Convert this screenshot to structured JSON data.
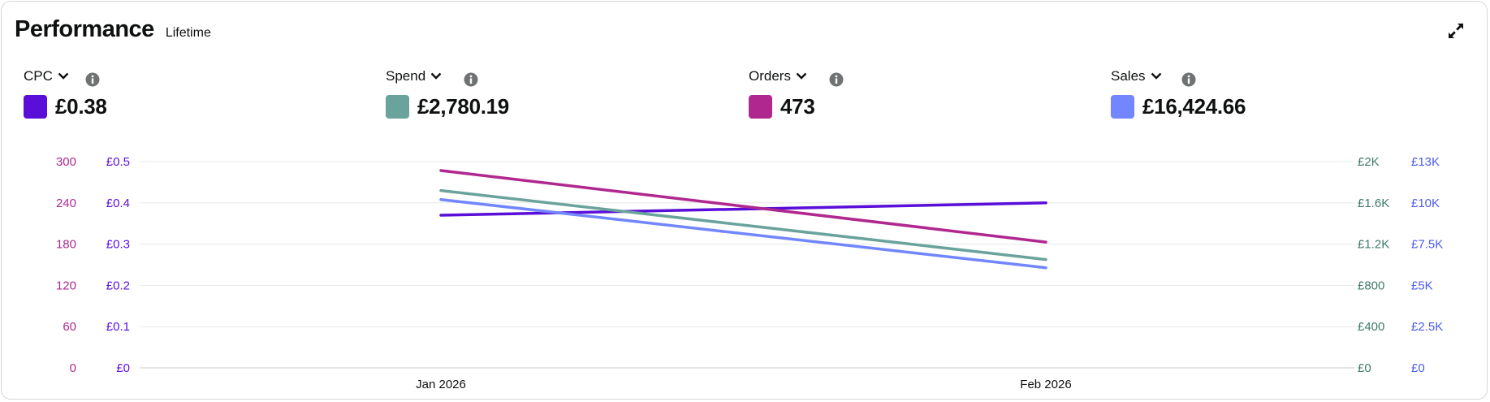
{
  "header": {
    "title": "Performance",
    "subtitle": "Lifetime"
  },
  "metrics": [
    {
      "label": "CPC",
      "value": "£0.38",
      "color": "#5a0fd8"
    },
    {
      "label": "Spend",
      "value": "£2,780.19",
      "color": "#6aa39c"
    },
    {
      "label": "Orders",
      "value": "473",
      "color": "#b0288f"
    },
    {
      "label": "Sales",
      "value": "£16,424.66",
      "color": "#7186ff"
    }
  ],
  "icons": {
    "expand": "expand-icon",
    "dropdown": "chevron-down-icon",
    "info": "info-icon"
  },
  "chart_data": {
    "type": "line",
    "x": [
      "Jan 2026",
      "Feb 2026"
    ],
    "series": [
      {
        "name": "CPC",
        "values": [
          0.37,
          0.4
        ],
        "axis": "cpc",
        "color": "#5a0fd8"
      },
      {
        "name": "Spend",
        "values": [
          1720,
          1050
        ],
        "axis": "spend",
        "color": "#6aa39c"
      },
      {
        "name": "Orders",
        "values": [
          287,
          183
        ],
        "axis": "orders",
        "color": "#b0288f"
      },
      {
        "name": "Sales",
        "values": [
          10200,
          6070
        ],
        "axis": "sales",
        "color": "#7186ff"
      }
    ],
    "axes": {
      "orders": {
        "side": "left",
        "ticks": [
          "0",
          "60",
          "120",
          "180",
          "240",
          "300"
        ],
        "range": [
          0,
          300
        ],
        "color": "#b0288f"
      },
      "cpc": {
        "side": "left",
        "ticks": [
          "£0",
          "£0.1",
          "£0.2",
          "£0.3",
          "£0.4",
          "£0.5"
        ],
        "range": [
          0,
          0.5
        ],
        "color": "#5a0fd8"
      },
      "spend": {
        "side": "right",
        "ticks": [
          "£0",
          "£400",
          "£800",
          "£1.2K",
          "£1.6K",
          "£2K"
        ],
        "range": [
          0,
          2000
        ],
        "color": "#3f7a6b"
      },
      "sales": {
        "side": "right",
        "ticks": [
          "£0",
          "£2.5K",
          "£5K",
          "£7.5K",
          "£10K",
          "£13K"
        ],
        "range": [
          0,
          12500
        ],
        "color": "#4b5cf0"
      }
    },
    "grid": true
  }
}
